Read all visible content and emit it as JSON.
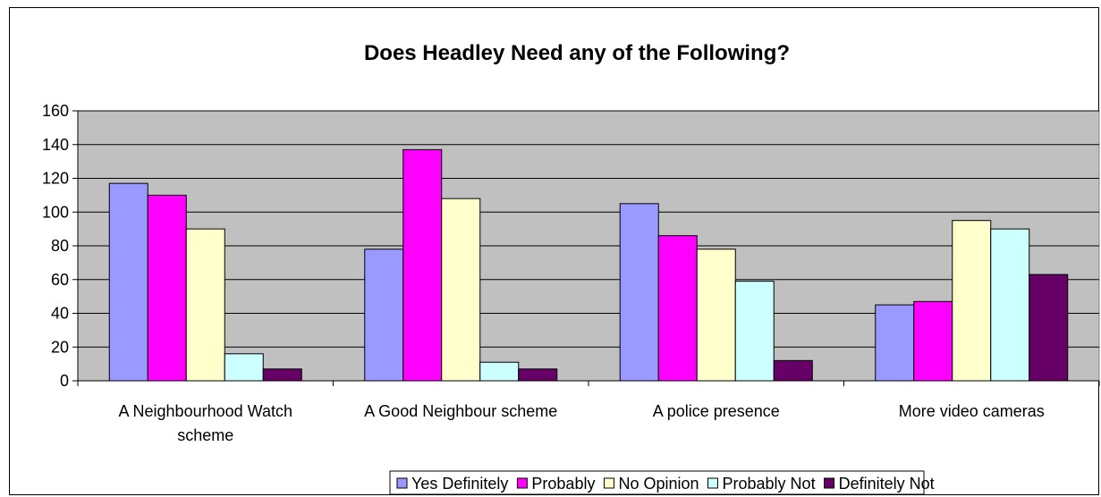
{
  "chart_data": {
    "type": "bar",
    "title": "Does Headley Need any of the Following?",
    "xlabel": "",
    "ylabel": "",
    "ylim": [
      0,
      160
    ],
    "yticks": [
      0,
      20,
      40,
      60,
      80,
      100,
      120,
      140,
      160
    ],
    "grid": true,
    "legend_position": "bottom",
    "categories": [
      [
        "A Neighbourhood Watch",
        "scheme"
      ],
      [
        "A Good Neighbour scheme"
      ],
      [
        "A police presence"
      ],
      [
        "More video cameras"
      ]
    ],
    "series": [
      {
        "name": "Yes Definitely",
        "color": "#9999ff",
        "values": [
          117,
          78,
          105,
          45
        ]
      },
      {
        "name": "Probably",
        "color": "#ff00ff",
        "values": [
          110,
          137,
          86,
          47
        ]
      },
      {
        "name": "No Opinion",
        "color": "#ffffcc",
        "values": [
          90,
          108,
          78,
          95
        ]
      },
      {
        "name": "Probably Not",
        "color": "#ccffff",
        "values": [
          16,
          11,
          59,
          90
        ]
      },
      {
        "name": "Definitely Not",
        "color": "#660066",
        "values": [
          7,
          7,
          12,
          63
        ]
      }
    ],
    "plot_background": "#c0c0c0"
  }
}
